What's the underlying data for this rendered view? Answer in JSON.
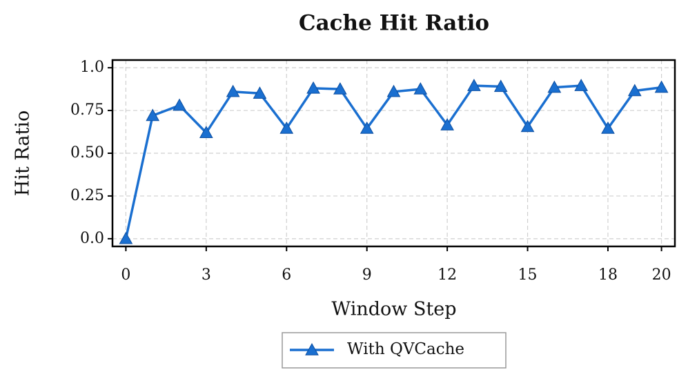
{
  "chart_data": {
    "type": "line",
    "title": "Cache Hit Ratio",
    "x_label": "Window Step",
    "y_label": "Hit Ratio",
    "x": [
      0,
      1,
      2,
      3,
      4,
      5,
      6,
      7,
      8,
      9,
      10,
      11,
      12,
      13,
      14,
      15,
      16,
      17,
      18,
      19,
      20
    ],
    "series": [
      {
        "name": "With QVCache",
        "color": "#1a6fd0",
        "marker": "triangle",
        "values": [
          0,
          0.72,
          0.78,
          0.62,
          0.86,
          0.85,
          0.645,
          0.88,
          0.875,
          0.645,
          0.86,
          0.875,
          0.665,
          0.895,
          0.89,
          0.655,
          0.885,
          0.895,
          0.645,
          0.865,
          0.885
        ]
      }
    ],
    "xlim": [
      -0.5,
      20.5
    ],
    "xticks": [
      0,
      3,
      6,
      9,
      12,
      15,
      18,
      20
    ],
    "ylim": [
      -0.045,
      1.045
    ],
    "yticks": [
      {
        "value": 0,
        "label": "0.0"
      },
      0.25,
      {
        "value": 0.5,
        "label": "0.50"
      },
      0.75,
      {
        "value": 1,
        "label": "1.0"
      }
    ],
    "grid": true,
    "legend": "bottom"
  }
}
